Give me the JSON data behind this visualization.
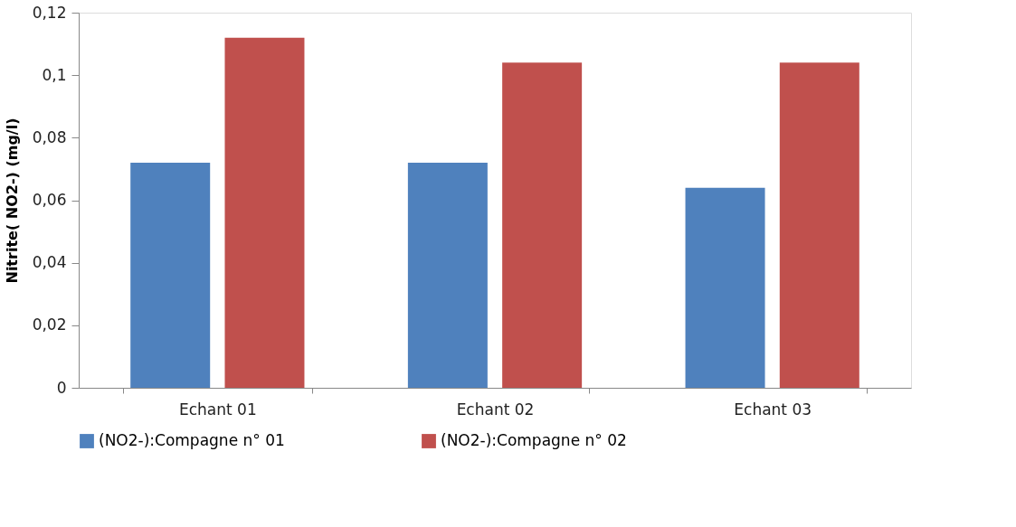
{
  "chart_data": {
    "type": "bar",
    "ylabel": "Nitrite( NO2-)  (mg/l)",
    "categories": [
      "Echant 01",
      "Echant 02",
      "Echant 03"
    ],
    "series": [
      {
        "name": "(NO2-):Compagne n° 01",
        "color": "#4f81bd",
        "values": [
          0.072,
          0.072,
          0.064
        ]
      },
      {
        "name": "(NO2-):Compagne n° 02",
        "color": "#c0504d",
        "values": [
          0.112,
          0.104,
          0.104
        ]
      }
    ],
    "ylim": [
      0,
      0.12
    ],
    "yticks": [
      0,
      {
        "value": 0.02,
        "label": "0,02"
      },
      {
        "value": 0.04,
        "label": "0,04"
      },
      {
        "value": 0.06,
        "label": "0,06"
      },
      {
        "value": 0.08,
        "label": "0,08"
      },
      {
        "value": 0.1,
        "label": "0,1"
      },
      {
        "value": 0.12,
        "label": "0,12"
      }
    ],
    "grid": false,
    "legend": "bottom"
  }
}
